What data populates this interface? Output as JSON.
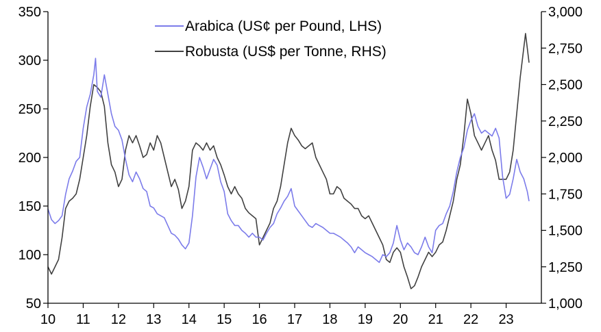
{
  "chart_data": {
    "type": "line",
    "title": "",
    "xlabel": "",
    "legend_position": "top-center",
    "grid": false,
    "x_axis": {
      "range": [
        2010.0,
        2024.0
      ],
      "ticks": [
        {
          "value": 2010,
          "label": "10"
        },
        {
          "value": 2011,
          "label": "11"
        },
        {
          "value": 2012,
          "label": "12"
        },
        {
          "value": 2013,
          "label": "13"
        },
        {
          "value": 2014,
          "label": "14"
        },
        {
          "value": 2015,
          "label": "15"
        },
        {
          "value": 2016,
          "label": "16"
        },
        {
          "value": 2017,
          "label": "17"
        },
        {
          "value": 2018,
          "label": "18"
        },
        {
          "value": 2019,
          "label": "19"
        },
        {
          "value": 2020,
          "label": "20"
        },
        {
          "value": 2021,
          "label": "21"
        },
        {
          "value": 2022,
          "label": "22"
        },
        {
          "value": 2023,
          "label": "23"
        }
      ]
    },
    "y_left": {
      "range": [
        50,
        350
      ],
      "ticks": [
        {
          "value": 50,
          "label": "50"
        },
        {
          "value": 100,
          "label": "100"
        },
        {
          "value": 150,
          "label": "150"
        },
        {
          "value": 200,
          "label": "200"
        },
        {
          "value": 250,
          "label": "250"
        },
        {
          "value": 300,
          "label": "300"
        },
        {
          "value": 350,
          "label": "350"
        }
      ]
    },
    "y_right": {
      "range": [
        1000,
        3000
      ],
      "ticks": [
        {
          "value": 1000,
          "label": "1,000"
        },
        {
          "value": 1250,
          "label": "1,250"
        },
        {
          "value": 1500,
          "label": "1,500"
        },
        {
          "value": 1750,
          "label": "1,750"
        },
        {
          "value": 2000,
          "label": "2,000"
        },
        {
          "value": 2250,
          "label": "2,250"
        },
        {
          "value": 2500,
          "label": "2,500"
        },
        {
          "value": 2750,
          "label": "2,750"
        },
        {
          "value": 3000,
          "label": "3,000"
        }
      ]
    },
    "series": [
      {
        "name": "Arabica (US¢ per Pound, LHS)",
        "axis": "left",
        "color": "#7b7bea",
        "points": [
          [
            2010.0,
            147
          ],
          [
            2010.1,
            136
          ],
          [
            2010.2,
            132
          ],
          [
            2010.3,
            135
          ],
          [
            2010.4,
            140
          ],
          [
            2010.5,
            162
          ],
          [
            2010.6,
            178
          ],
          [
            2010.7,
            186
          ],
          [
            2010.8,
            196
          ],
          [
            2010.9,
            200
          ],
          [
            2011.0,
            230
          ],
          [
            2011.1,
            252
          ],
          [
            2011.2,
            265
          ],
          [
            2011.3,
            285
          ],
          [
            2011.35,
            302
          ],
          [
            2011.4,
            268
          ],
          [
            2011.5,
            262
          ],
          [
            2011.6,
            285
          ],
          [
            2011.7,
            265
          ],
          [
            2011.8,
            245
          ],
          [
            2011.9,
            232
          ],
          [
            2012.0,
            228
          ],
          [
            2012.1,
            218
          ],
          [
            2012.2,
            198
          ],
          [
            2012.3,
            182
          ],
          [
            2012.4,
            175
          ],
          [
            2012.5,
            185
          ],
          [
            2012.6,
            178
          ],
          [
            2012.7,
            168
          ],
          [
            2012.8,
            165
          ],
          [
            2012.9,
            150
          ],
          [
            2013.0,
            148
          ],
          [
            2013.1,
            142
          ],
          [
            2013.2,
            140
          ],
          [
            2013.3,
            138
          ],
          [
            2013.4,
            130
          ],
          [
            2013.5,
            122
          ],
          [
            2013.6,
            120
          ],
          [
            2013.7,
            116
          ],
          [
            2013.8,
            110
          ],
          [
            2013.9,
            106
          ],
          [
            2014.0,
            112
          ],
          [
            2014.1,
            140
          ],
          [
            2014.2,
            180
          ],
          [
            2014.3,
            200
          ],
          [
            2014.4,
            190
          ],
          [
            2014.5,
            178
          ],
          [
            2014.6,
            188
          ],
          [
            2014.7,
            198
          ],
          [
            2014.8,
            192
          ],
          [
            2014.9,
            175
          ],
          [
            2015.0,
            165
          ],
          [
            2015.1,
            142
          ],
          [
            2015.2,
            135
          ],
          [
            2015.3,
            130
          ],
          [
            2015.4,
            130
          ],
          [
            2015.5,
            125
          ],
          [
            2015.6,
            122
          ],
          [
            2015.7,
            118
          ],
          [
            2015.8,
            122
          ],
          [
            2015.9,
            118
          ],
          [
            2016.0,
            118
          ],
          [
            2016.1,
            115
          ],
          [
            2016.2,
            122
          ],
          [
            2016.3,
            128
          ],
          [
            2016.4,
            132
          ],
          [
            2016.5,
            142
          ],
          [
            2016.6,
            148
          ],
          [
            2016.7,
            155
          ],
          [
            2016.8,
            160
          ],
          [
            2016.9,
            168
          ],
          [
            2017.0,
            150
          ],
          [
            2017.1,
            145
          ],
          [
            2017.2,
            140
          ],
          [
            2017.3,
            135
          ],
          [
            2017.4,
            130
          ],
          [
            2017.5,
            128
          ],
          [
            2017.6,
            132
          ],
          [
            2017.7,
            130
          ],
          [
            2017.8,
            128
          ],
          [
            2017.9,
            125
          ],
          [
            2018.0,
            122
          ],
          [
            2018.1,
            122
          ],
          [
            2018.2,
            120
          ],
          [
            2018.3,
            118
          ],
          [
            2018.4,
            115
          ],
          [
            2018.5,
            112
          ],
          [
            2018.6,
            108
          ],
          [
            2018.7,
            102
          ],
          [
            2018.8,
            108
          ],
          [
            2018.9,
            105
          ],
          [
            2019.0,
            102
          ],
          [
            2019.1,
            100
          ],
          [
            2019.2,
            98
          ],
          [
            2019.3,
            95
          ],
          [
            2019.4,
            92
          ],
          [
            2019.5,
            100
          ],
          [
            2019.6,
            98
          ],
          [
            2019.7,
            102
          ],
          [
            2019.8,
            112
          ],
          [
            2019.9,
            130
          ],
          [
            2020.0,
            115
          ],
          [
            2020.1,
            105
          ],
          [
            2020.2,
            112
          ],
          [
            2020.3,
            108
          ],
          [
            2020.4,
            102
          ],
          [
            2020.5,
            100
          ],
          [
            2020.6,
            108
          ],
          [
            2020.7,
            118
          ],
          [
            2020.8,
            108
          ],
          [
            2020.9,
            102
          ],
          [
            2021.0,
            125
          ],
          [
            2021.1,
            130
          ],
          [
            2021.2,
            132
          ],
          [
            2021.3,
            142
          ],
          [
            2021.4,
            150
          ],
          [
            2021.5,
            165
          ],
          [
            2021.6,
            185
          ],
          [
            2021.7,
            200
          ],
          [
            2021.8,
            210
          ],
          [
            2021.9,
            228
          ],
          [
            2022.0,
            238
          ],
          [
            2022.1,
            245
          ],
          [
            2022.2,
            232
          ],
          [
            2022.3,
            225
          ],
          [
            2022.4,
            228
          ],
          [
            2022.5,
            225
          ],
          [
            2022.6,
            222
          ],
          [
            2022.7,
            230
          ],
          [
            2022.8,
            220
          ],
          [
            2022.9,
            180
          ],
          [
            2023.0,
            158
          ],
          [
            2023.1,
            162
          ],
          [
            2023.2,
            178
          ],
          [
            2023.3,
            198
          ],
          [
            2023.4,
            185
          ],
          [
            2023.5,
            178
          ],
          [
            2023.6,
            165
          ],
          [
            2023.65,
            155
          ]
        ]
      },
      {
        "name": "Robusta (US$ per Tonne, RHS)",
        "axis": "right",
        "color": "#404040",
        "points": [
          [
            2010.0,
            1250
          ],
          [
            2010.1,
            1200
          ],
          [
            2010.2,
            1250
          ],
          [
            2010.3,
            1300
          ],
          [
            2010.4,
            1450
          ],
          [
            2010.5,
            1650
          ],
          [
            2010.6,
            1700
          ],
          [
            2010.7,
            1720
          ],
          [
            2010.8,
            1750
          ],
          [
            2010.9,
            1850
          ],
          [
            2011.0,
            2000
          ],
          [
            2011.1,
            2150
          ],
          [
            2011.2,
            2350
          ],
          [
            2011.3,
            2500
          ],
          [
            2011.4,
            2480
          ],
          [
            2011.5,
            2450
          ],
          [
            2011.6,
            2350
          ],
          [
            2011.7,
            2100
          ],
          [
            2011.8,
            1950
          ],
          [
            2011.9,
            1900
          ],
          [
            2012.0,
            1800
          ],
          [
            2012.1,
            1850
          ],
          [
            2012.2,
            2050
          ],
          [
            2012.3,
            2150
          ],
          [
            2012.4,
            2100
          ],
          [
            2012.5,
            2150
          ],
          [
            2012.6,
            2080
          ],
          [
            2012.7,
            2000
          ],
          [
            2012.8,
            2020
          ],
          [
            2012.9,
            2100
          ],
          [
            2013.0,
            2050
          ],
          [
            2013.1,
            2150
          ],
          [
            2013.2,
            2100
          ],
          [
            2013.3,
            2000
          ],
          [
            2013.4,
            1900
          ],
          [
            2013.5,
            1800
          ],
          [
            2013.6,
            1850
          ],
          [
            2013.7,
            1780
          ],
          [
            2013.8,
            1650
          ],
          [
            2013.9,
            1700
          ],
          [
            2014.0,
            1800
          ],
          [
            2014.1,
            2050
          ],
          [
            2014.2,
            2100
          ],
          [
            2014.3,
            2080
          ],
          [
            2014.4,
            2050
          ],
          [
            2014.5,
            2100
          ],
          [
            2014.6,
            2050
          ],
          [
            2014.7,
            2080
          ],
          [
            2014.8,
            2000
          ],
          [
            2014.9,
            1950
          ],
          [
            2015.0,
            1880
          ],
          [
            2015.1,
            1800
          ],
          [
            2015.2,
            1750
          ],
          [
            2015.3,
            1800
          ],
          [
            2015.4,
            1750
          ],
          [
            2015.5,
            1720
          ],
          [
            2015.6,
            1650
          ],
          [
            2015.7,
            1620
          ],
          [
            2015.8,
            1600
          ],
          [
            2015.9,
            1580
          ],
          [
            2016.0,
            1400
          ],
          [
            2016.1,
            1450
          ],
          [
            2016.2,
            1500
          ],
          [
            2016.3,
            1550
          ],
          [
            2016.4,
            1650
          ],
          [
            2016.5,
            1700
          ],
          [
            2016.6,
            1800
          ],
          [
            2016.7,
            1950
          ],
          [
            2016.8,
            2100
          ],
          [
            2016.9,
            2200
          ],
          [
            2017.0,
            2150
          ],
          [
            2017.1,
            2120
          ],
          [
            2017.2,
            2080
          ],
          [
            2017.3,
            2060
          ],
          [
            2017.4,
            2080
          ],
          [
            2017.5,
            2100
          ],
          [
            2017.6,
            2000
          ],
          [
            2017.7,
            1950
          ],
          [
            2017.8,
            1900
          ],
          [
            2017.9,
            1850
          ],
          [
            2018.0,
            1750
          ],
          [
            2018.1,
            1750
          ],
          [
            2018.2,
            1800
          ],
          [
            2018.3,
            1780
          ],
          [
            2018.4,
            1720
          ],
          [
            2018.5,
            1700
          ],
          [
            2018.6,
            1680
          ],
          [
            2018.7,
            1650
          ],
          [
            2018.8,
            1650
          ],
          [
            2018.9,
            1600
          ],
          [
            2019.0,
            1580
          ],
          [
            2019.1,
            1600
          ],
          [
            2019.2,
            1550
          ],
          [
            2019.3,
            1500
          ],
          [
            2019.4,
            1450
          ],
          [
            2019.5,
            1400
          ],
          [
            2019.6,
            1300
          ],
          [
            2019.7,
            1280
          ],
          [
            2019.8,
            1350
          ],
          [
            2019.9,
            1380
          ],
          [
            2020.0,
            1350
          ],
          [
            2020.1,
            1250
          ],
          [
            2020.2,
            1180
          ],
          [
            2020.3,
            1100
          ],
          [
            2020.4,
            1120
          ],
          [
            2020.5,
            1180
          ],
          [
            2020.6,
            1250
          ],
          [
            2020.7,
            1300
          ],
          [
            2020.8,
            1350
          ],
          [
            2020.9,
            1320
          ],
          [
            2021.0,
            1350
          ],
          [
            2021.1,
            1400
          ],
          [
            2021.2,
            1420
          ],
          [
            2021.3,
            1500
          ],
          [
            2021.4,
            1600
          ],
          [
            2021.5,
            1700
          ],
          [
            2021.6,
            1850
          ],
          [
            2021.7,
            1950
          ],
          [
            2021.8,
            2150
          ],
          [
            2021.9,
            2400
          ],
          [
            2022.0,
            2300
          ],
          [
            2022.1,
            2150
          ],
          [
            2022.2,
            2100
          ],
          [
            2022.3,
            2050
          ],
          [
            2022.4,
            2100
          ],
          [
            2022.5,
            2150
          ],
          [
            2022.6,
            2050
          ],
          [
            2022.7,
            1980
          ],
          [
            2022.8,
            1850
          ],
          [
            2022.9,
            1850
          ],
          [
            2023.0,
            1850
          ],
          [
            2023.1,
            1900
          ],
          [
            2023.2,
            2050
          ],
          [
            2023.3,
            2300
          ],
          [
            2023.4,
            2550
          ],
          [
            2023.5,
            2750
          ],
          [
            2023.55,
            2850
          ],
          [
            2023.6,
            2750
          ],
          [
            2023.65,
            2650
          ]
        ]
      }
    ]
  }
}
